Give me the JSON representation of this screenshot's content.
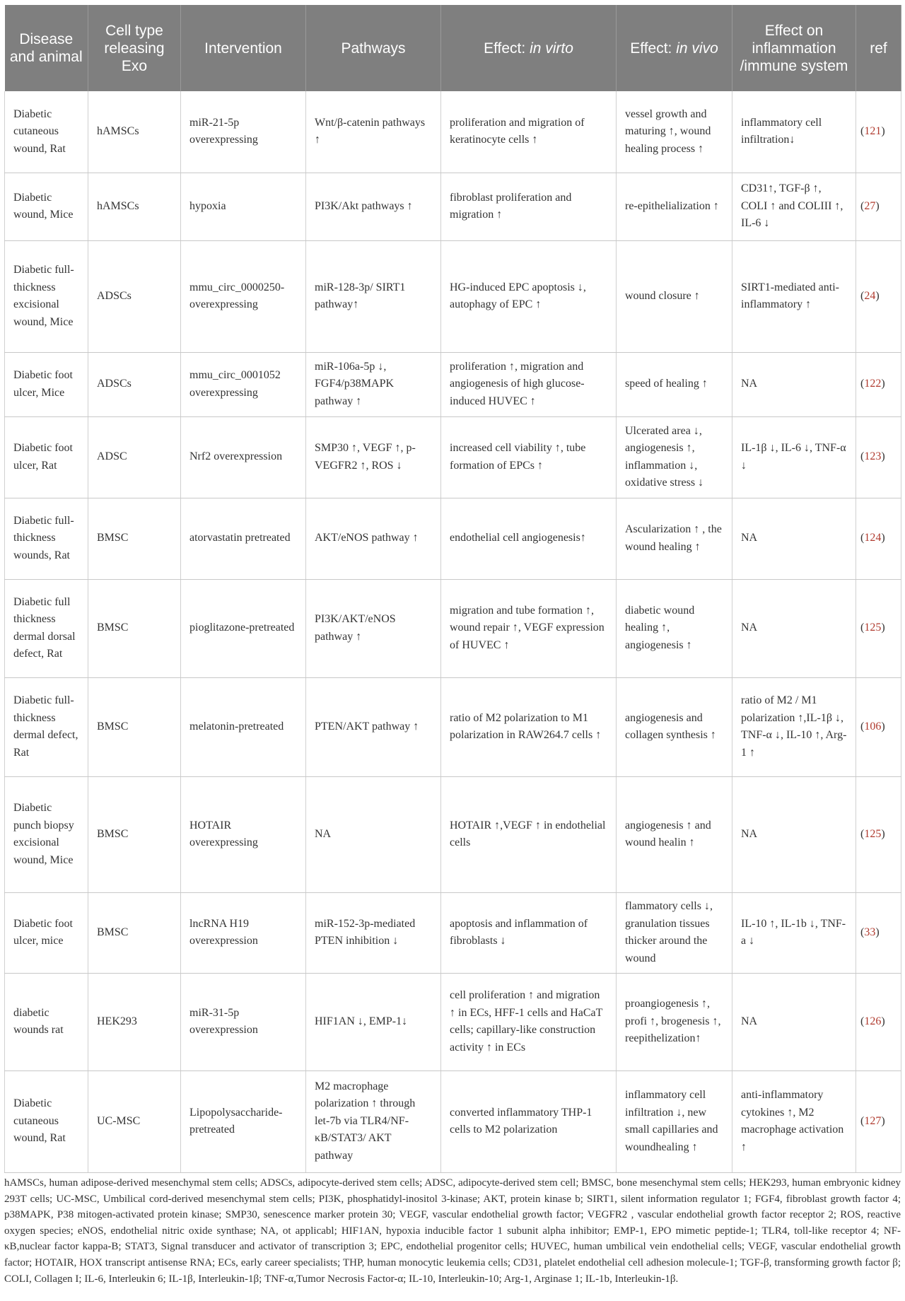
{
  "headers": [
    "Disease and animal",
    "Cell type releasing Exo",
    "Intervention",
    "Pathways",
    "Effect: ",
    "in virto",
    "Effect: ",
    "in vivo",
    "Effect on inflammation /immune system",
    "ref"
  ],
  "rows": [
    [
      "Diabetic cutaneous wound, Rat",
      "hAMSCs",
      "miR-21-5p overexpressing",
      "Wnt/β-catenin pathways ↑",
      "proliferation and migration of keratinocyte cells ↑",
      "vessel growth and maturing ↑, wound healing process ↑",
      "inflammatory cell infiltration↓",
      "121"
    ],
    [
      "Diabetic wound, Mice",
      "hAMSCs",
      "hypoxia",
      "PI3K/Akt pathways ↑",
      "fibroblast proliferation and migration ↑",
      "re-epithelialization ↑",
      "CD31↑, TGF-β ↑, COLI ↑ and COLIII ↑, IL-6 ↓",
      "27"
    ],
    [
      "Diabetic full-thickness excisional wound, Mice",
      "ADSCs",
      "mmu_circ_0000250-overexpressing",
      "miR-128-3p/ SIRT1 pathway↑",
      "HG-induced EPC apoptosis ↓, autophagy of EPC ↑",
      "wound closure ↑",
      "SIRT1-mediated anti-inflammatory ↑",
      "24"
    ],
    [
      "Diabetic foot ulcer, Mice",
      "ADSCs",
      "mmu_circ_0001052 overexpressing",
      "miR-106a-5p ↓, FGF4/p38MAPK pathway ↑",
      "proliferation ↑, migration and angiogenesis of high glucose-induced HUVEC ↑",
      "speed of healing ↑",
      "NA",
      "122"
    ],
    [
      "Diabetic foot ulcer, Rat",
      "ADSC",
      "Nrf2 overexpression",
      "SMP30 ↑, VEGF ↑, p-VEGFR2 ↑, ROS ↓",
      "increased cell viability ↑, tube formation of EPCs ↑",
      "Ulcerated area ↓, angiogenesis ↑, inflammation ↓, oxidative stress ↓",
      "IL-1β ↓, IL-6 ↓, TNF-α ↓",
      "123"
    ],
    [
      "Diabetic full-thickness wounds, Rat",
      "BMSC",
      "atorvastatin pretreated",
      "AKT/eNOS pathway ↑",
      "endothelial cell angiogenesis↑",
      "Ascularization ↑ , the wound healing ↑",
      "NA",
      "124"
    ],
    [
      "Diabetic full thickness dermal dorsal defect, Rat",
      "BMSC",
      "pioglitazone-pretreated",
      "PI3K/AKT/eNOS pathway ↑",
      "migration and tube formation ↑, wound repair ↑, VEGF expression of HUVEC ↑",
      "diabetic wound healing ↑, angiogenesis ↑",
      "NA",
      "125"
    ],
    [
      "Diabetic full-thickness dermal defect, Rat",
      "BMSC",
      "melatonin-pretreated",
      "PTEN/AKT pathway ↑",
      "ratio of M2 polarization to M1 polarization in RAW264.7 cells ↑",
      "angiogenesis and collagen synthesis ↑",
      "ratio of M2 / M1 polarization ↑,IL-1β ↓, TNF-α ↓, IL-10 ↑, Arg-1 ↑",
      "106"
    ],
    [
      "Diabetic punch biopsy excisional wound, Mice",
      "BMSC",
      "HOTAIR overexpressing",
      "NA",
      "HOTAIR ↑,VEGF ↑ in endothelial cells",
      "angiogenesis ↑ and wound healin ↑",
      "NA",
      "125"
    ],
    [
      "Diabetic foot ulcer, mice",
      "BMSC",
      "lncRNA H19 overexpression",
      "miR-152-3p-mediated PTEN inhibition ↓",
      "apoptosis and inflammation of fibroblasts ↓",
      "flammatory cells ↓, granulation tissues thicker around the wound",
      "IL-10 ↑, IL-1b ↓, TNF-a ↓",
      "33"
    ],
    [
      "diabetic wounds rat",
      "HEK293",
      "miR-31-5p overexpression",
      "HIF1AN ↓, EMP-1↓",
      "cell proliferation ↑ and migration ↑ in ECs, HFF-1 cells and HaCaT cells; capillary-like construction activity ↑ in ECs",
      "proangiogenesis ↑, profi ↑, brogenesis ↑, reepithelization↑",
      "NA",
      "126"
    ],
    [
      "Diabetic cutaneous wound, Rat",
      "UC-MSC",
      "Lipopolysaccharide-pretreated",
      "M2 macrophage polarization ↑ through let-7b via TLR4/NF-κB/STAT3/ AKT pathway",
      "converted inflammatory THP-1 cells to M2 polarization",
      "inflammatory cell infiltration ↓, new small capillaries and woundhealing ↑",
      "anti-inflammatory cytokines ↑, M2 macrophage activation ↑",
      "127"
    ]
  ],
  "footnote": "hAMSCs, human adipose-derived mesenchymal stem cells; ADSCs, adipocyte-derived stem cells; ADSC, adipocyte-derived stem cell; BMSC, bone mesenchymal stem cells; HEK293, human embryonic kidney 293T cells; UC-MSC, Umbilical cord-derived mesenchymal stem cells; PI3K, phosphatidyl-inositol 3-kinase; AKT, protein kinase b; SIRT1, silent information regulator 1; FGF4, fibroblast growth factor 4; p38MAPK, P38 mitogen-activated protein kinase; SMP30, senescence marker protein 30; VEGF, vascular endothelial growth factor; VEGFR2 , vascular endothelial growth factor receptor 2; ROS, reactive oxygen species; eNOS, endothelial nitric oxide synthase; NA, ot applicabl; HIF1AN, hypoxia inducible factor 1 subunit alpha inhibitor; EMP-1, EPO mimetic peptide-1; TLR4, toll-like receptor 4; NF-κB,nuclear factor kappa-B; STAT3, Signal transducer and activator of transcription 3; EPC, endothelial progenitor cells; HUVEC, human umbilical vein endothelial cells; VEGF, vascular endothelial growth factor; HOTAIR, HOX transcript antisense RNA; ECs, early career specialists; THP, human monocytic leukemia cells; CD31, platelet endothelial cell adhesion molecule-1; TGF-β, transforming growth factor β; COLI, Collagen I; IL-6, Interleukin 6; IL-1β, Interleukin-1β; TNF-α,Tumor Necrosis Factor-α; IL-10, Interleukin-10; Arg-1, Arginase 1; IL-1b, Interleukin-1β.",
  "colors": {
    "header_bg": "#7f7f7f",
    "ref_link": "#b03a2e"
  }
}
